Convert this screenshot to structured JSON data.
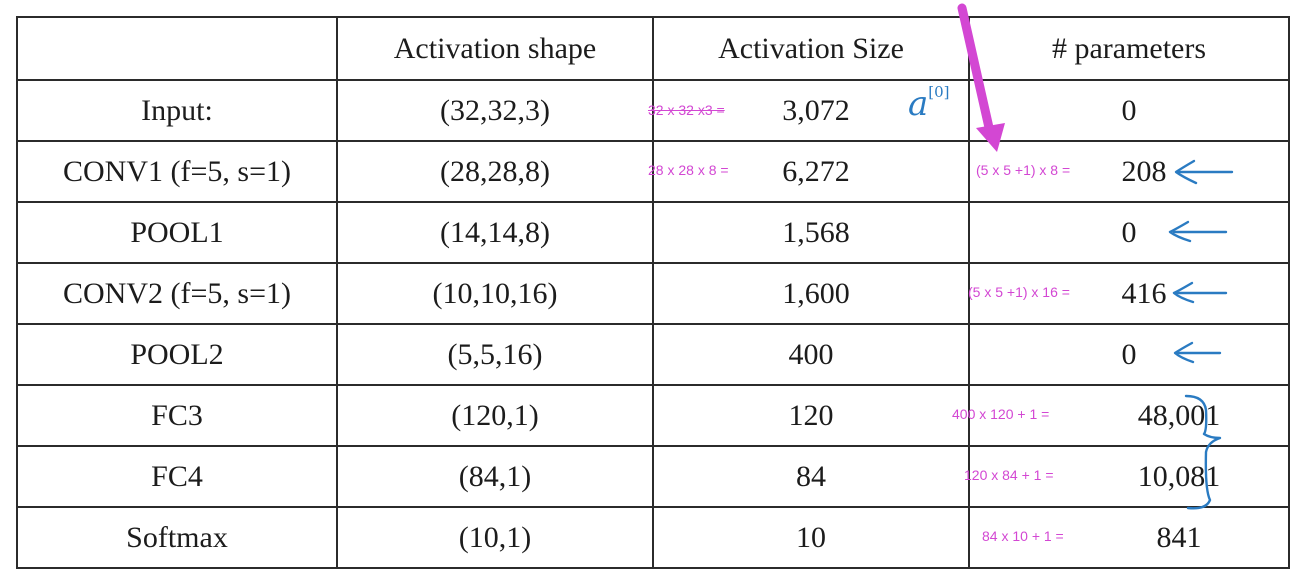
{
  "table": {
    "headers": [
      "",
      "Activation shape",
      "Activation Size",
      "# parameters"
    ],
    "rows": [
      {
        "layer": "Input:",
        "shape": "(32,32,3)",
        "size": "3,072",
        "params": "0",
        "size_note": "32 x 32 x3 =",
        "param_note": ""
      },
      {
        "layer": "CONV1 (f=5, s=1)",
        "shape": "(28,28,8)",
        "size": "6,272",
        "params": "208",
        "size_note": "28 x 28 x 8 =",
        "param_note": "(5 x 5  +1) x 8 ="
      },
      {
        "layer": "POOL1",
        "shape": "(14,14,8)",
        "size": "1,568",
        "params": "0",
        "size_note": "",
        "param_note": ""
      },
      {
        "layer": "CONV2  (f=5, s=1)",
        "shape": "(10,10,16)",
        "size": "1,600",
        "params": "416",
        "size_note": "",
        "param_note": "(5 x 5 +1) x 16 ="
      },
      {
        "layer": "POOL2",
        "shape": "(5,5,16)",
        "size": "400",
        "params": "0",
        "size_note": "",
        "param_note": ""
      },
      {
        "layer": "FC3",
        "shape": "(120,1)",
        "size": "120",
        "params": "48,001",
        "size_note": "",
        "param_note": "400 x 120 + 1 ="
      },
      {
        "layer": "FC4",
        "shape": "(84,1)",
        "size": "84",
        "params": "10,081",
        "size_note": "",
        "param_note": "120 x 84 + 1 ="
      },
      {
        "layer": "Softmax",
        "shape": "(10,1)",
        "size": "10",
        "params": "841",
        "size_note": "",
        "param_note": "84 x 10 + 1 ="
      }
    ]
  },
  "annotations": {
    "a0_base": "a",
    "a0_sup": "[0]",
    "ink_blue": "#2a7bc2",
    "ink_magenta": "#d347d3"
  }
}
